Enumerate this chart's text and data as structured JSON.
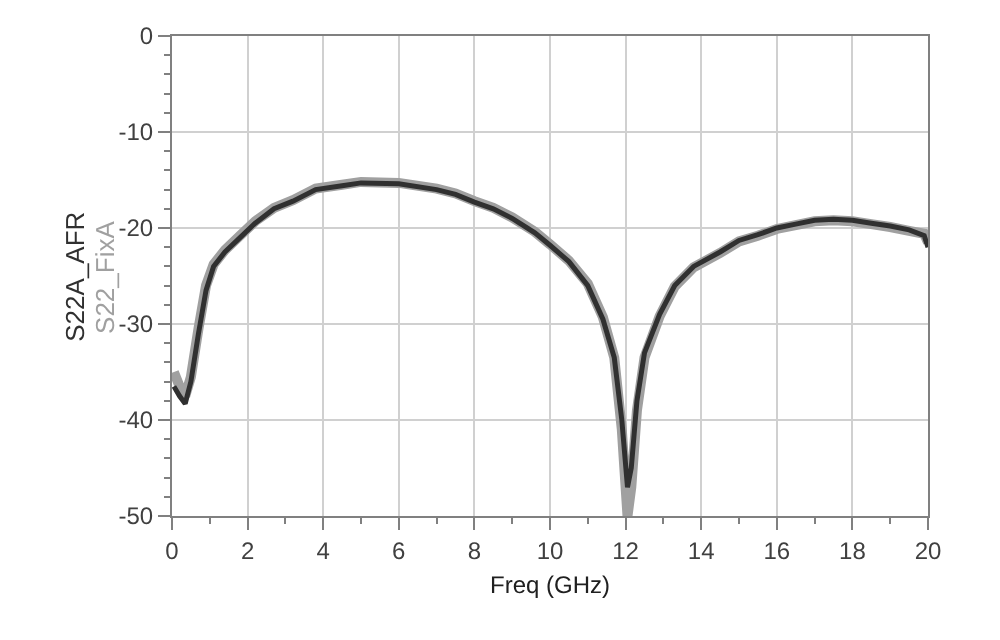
{
  "chart_data": {
    "type": "line",
    "xlabel": "Freq (GHz)",
    "xlim": [
      0,
      20
    ],
    "xticks": [
      0,
      2,
      4,
      6,
      8,
      10,
      12,
      14,
      16,
      18,
      20
    ],
    "ylim": [
      -50,
      0
    ],
    "yticks": [
      -50,
      -40,
      -30,
      -20,
      -10,
      0
    ],
    "grid": true,
    "legend": false,
    "marker": "none",
    "line_style": "solid",
    "series": [
      {
        "name": "S22_FixA",
        "color": "#a0a0a0",
        "x": [
          0.05,
          0.2,
          0.35,
          0.5,
          0.7,
          0.9,
          1.1,
          1.4,
          1.8,
          2.2,
          2.7,
          3.2,
          3.8,
          4.5,
          5,
          6,
          7,
          7.5,
          8,
          8.5,
          9,
          9.6,
          10,
          10.5,
          11,
          11.4,
          11.7,
          11.9,
          12.05,
          12.15,
          12.3,
          12.5,
          12.9,
          13.3,
          13.8,
          14.5,
          15,
          15.5,
          16,
          16.5,
          17,
          17.5,
          18,
          18.5,
          19,
          19.5,
          19.9,
          20
        ],
        "values": [
          -35,
          -36.5,
          -37.5,
          -35.5,
          -30.5,
          -26,
          -23.8,
          -22.3,
          -20.8,
          -19.3,
          -17.9,
          -17.1,
          -15.9,
          -15.5,
          -15.2,
          -15.3,
          -15.9,
          -16.4,
          -17.2,
          -17.9,
          -18.9,
          -20.4,
          -21.7,
          -23.4,
          -25.8,
          -29.3,
          -33.5,
          -41,
          -50,
          -47,
          -39,
          -33.5,
          -29.2,
          -26.1,
          -24.1,
          -22.6,
          -21.4,
          -20.8,
          -20.1,
          -19.7,
          -19.3,
          -19.2,
          -19.3,
          -19.6,
          -19.9,
          -20.3,
          -20.6,
          -21.5
        ]
      },
      {
        "name": "S22A_AFR",
        "color": "#303030",
        "x": [
          0.05,
          0.2,
          0.35,
          0.5,
          0.7,
          0.9,
          1.1,
          1.4,
          1.8,
          2.2,
          2.7,
          3.2,
          3.8,
          4.5,
          5,
          6,
          7,
          7.5,
          8,
          8.5,
          9,
          9.6,
          10,
          10.5,
          11,
          11.4,
          11.7,
          11.9,
          12.05,
          12.15,
          12.3,
          12.5,
          12.9,
          13.3,
          13.8,
          14.5,
          15,
          15.5,
          16,
          16.5,
          17,
          17.5,
          18,
          18.5,
          19,
          19.5,
          19.9,
          20
        ],
        "values": [
          -36.5,
          -37.5,
          -38.3,
          -36,
          -31,
          -26.5,
          -24,
          -22.5,
          -21,
          -19.5,
          -18,
          -17.2,
          -16,
          -15.6,
          -15.3,
          -15.4,
          -16,
          -16.5,
          -17.3,
          -18,
          -19,
          -20.5,
          -21.8,
          -23.5,
          -26,
          -29.5,
          -33.5,
          -40,
          -47,
          -45,
          -38,
          -33,
          -29,
          -26,
          -24,
          -22.5,
          -21.3,
          -20.7,
          -20,
          -19.6,
          -19.2,
          -19.1,
          -19.2,
          -19.5,
          -19.8,
          -20.2,
          -20.8,
          -22
        ]
      }
    ]
  }
}
